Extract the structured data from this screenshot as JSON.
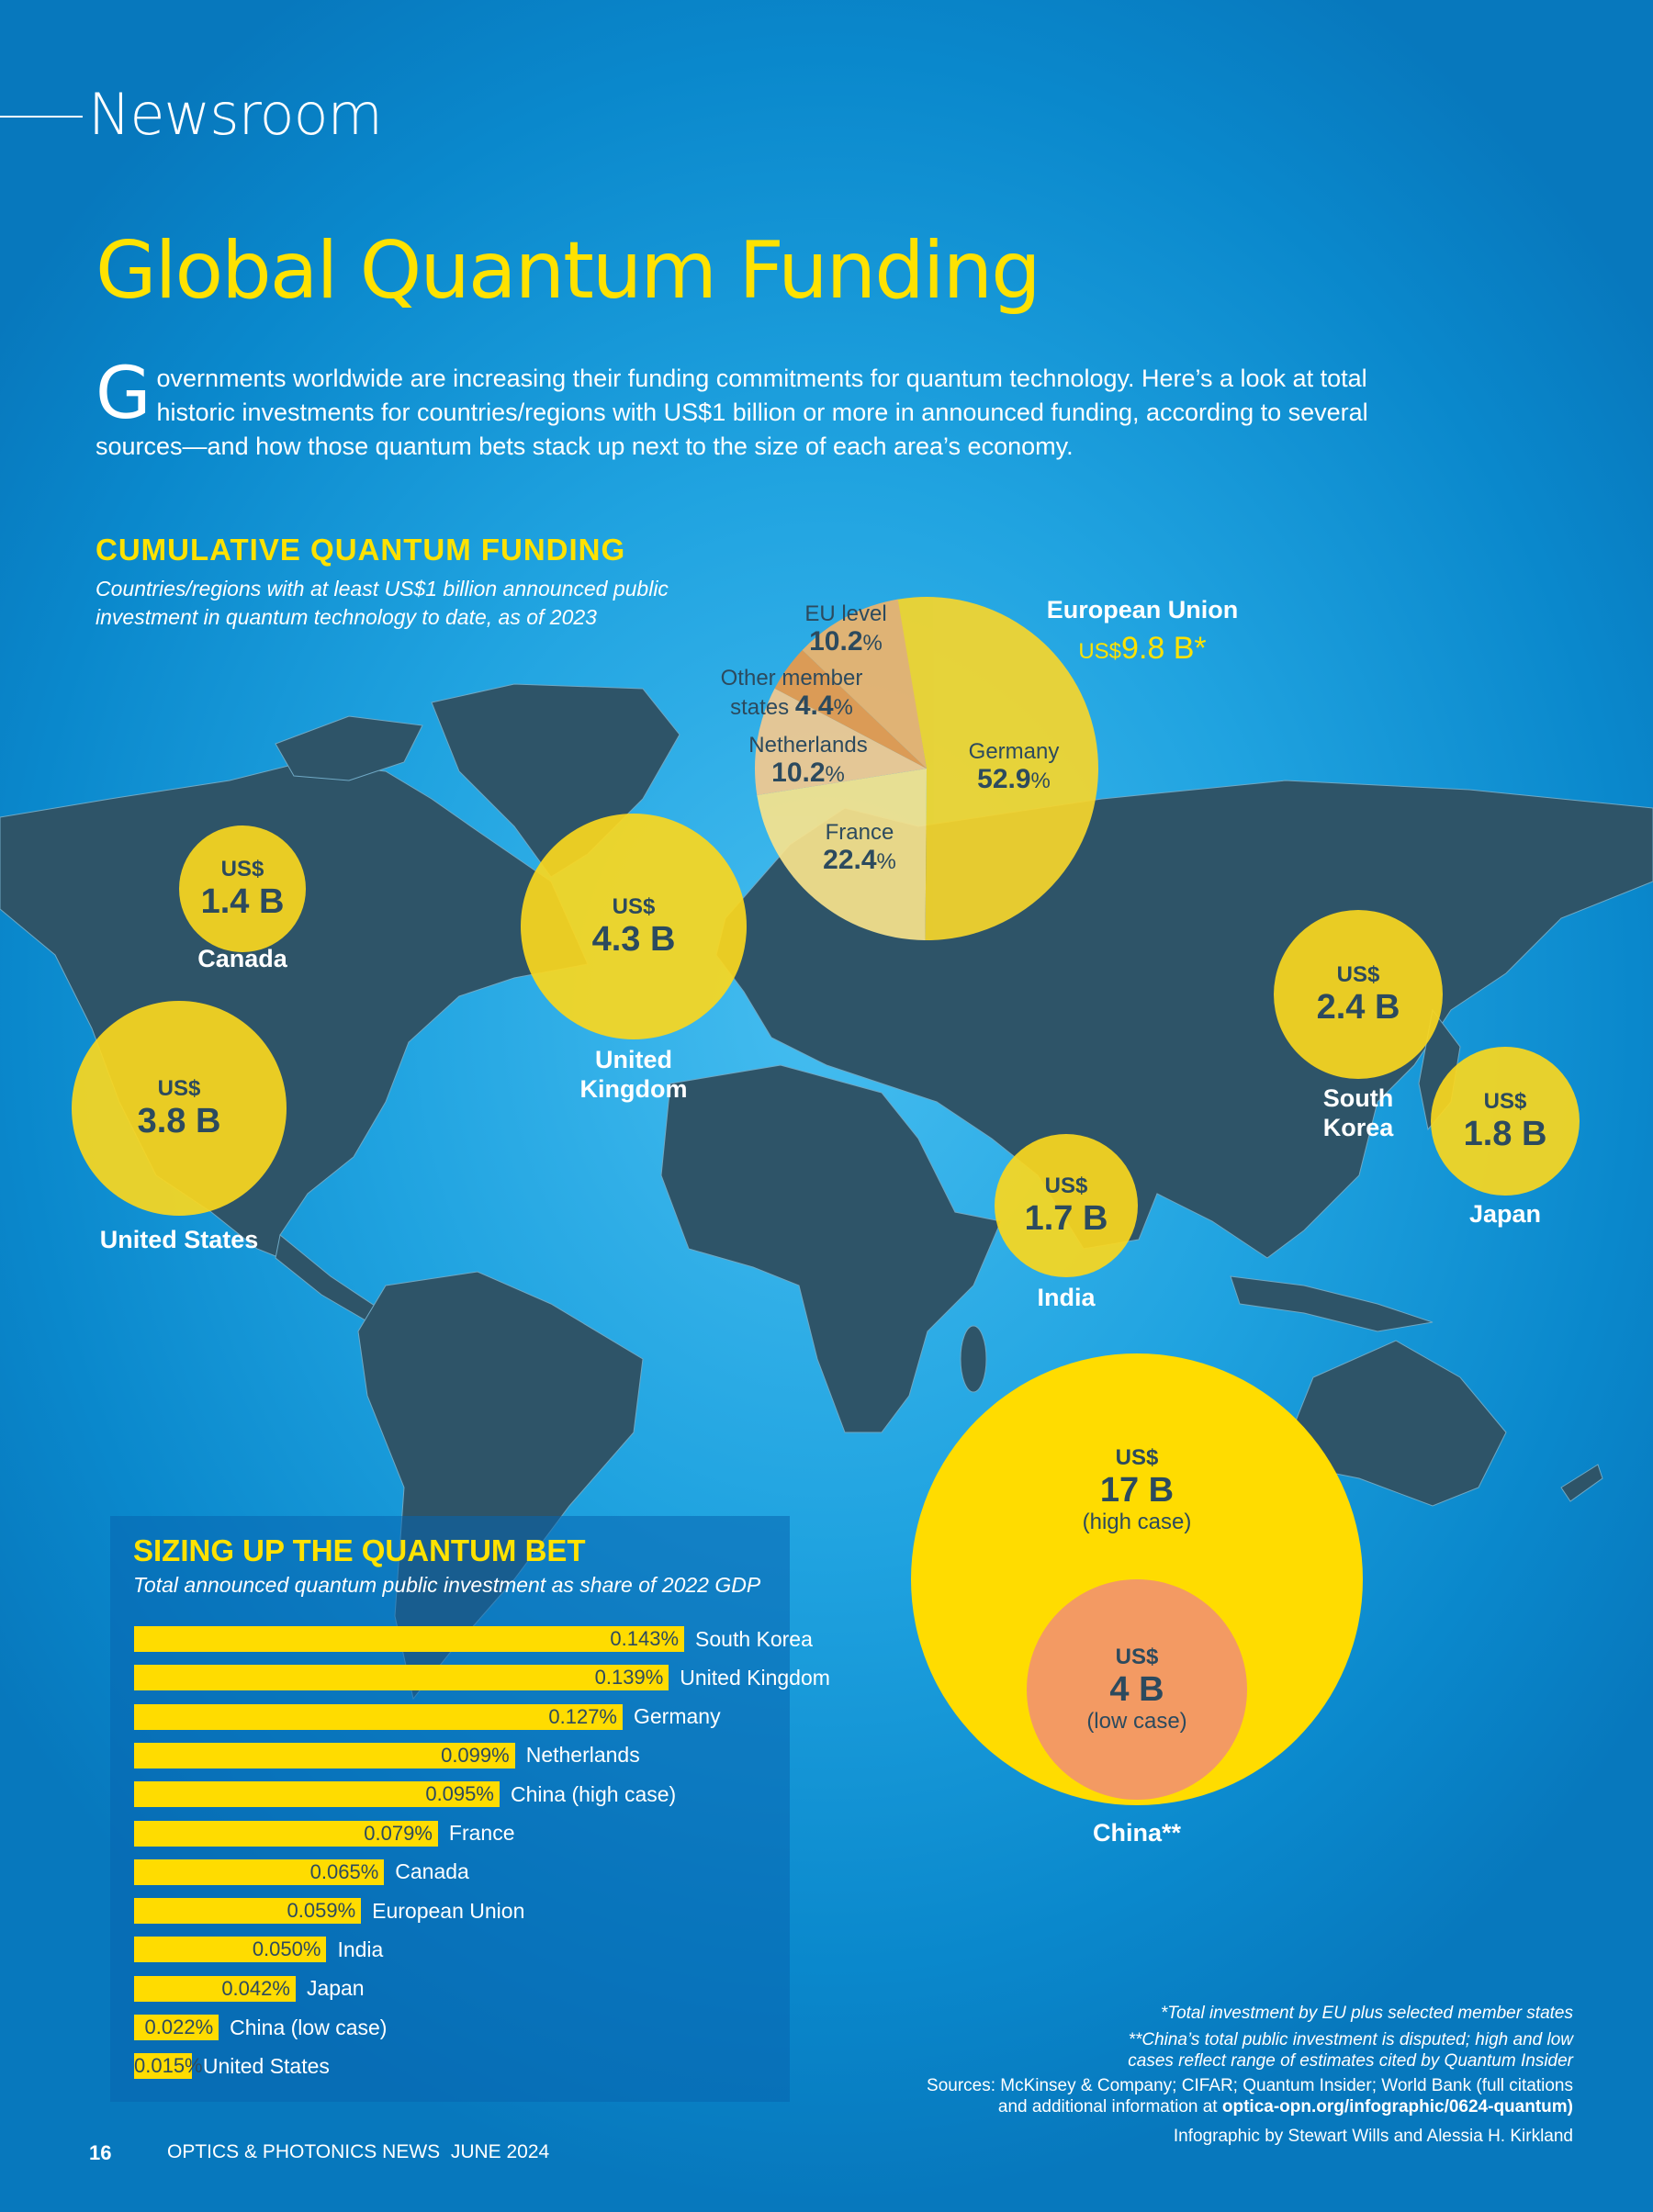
{
  "header": {
    "section": "Newsroom",
    "title": "Global Quantum Funding",
    "intro_cap": "G",
    "intro": "overnments worldwide are increasing their funding commitments for quantum technology. Here’s a look at total historic investments for countries/regions with US$1 billion or more in announced funding, according to several sources—and how those quantum bets stack up next to the size of each area’s economy."
  },
  "map": {
    "heading": "CUMULATIVE QUANTUM FUNDING",
    "subheading": "Countries/regions with at least US$1 billion announced public investment in quantum technology to date, as of 2023",
    "currency": "US$"
  },
  "chart_data": [
    {
      "type": "bubble",
      "title": "CUMULATIVE QUANTUM FUNDING",
      "unit": "US$ B",
      "points": [
        {
          "region": "Canada",
          "value": 1.4,
          "label": "1.4 B"
        },
        {
          "region": "United States",
          "value": 3.8,
          "label": "3.8 B"
        },
        {
          "region": "United Kingdom",
          "value": 4.3,
          "label": "4.3 B"
        },
        {
          "region": "European Union",
          "value": 9.8,
          "label": "US$9.8 B*"
        },
        {
          "region": "South Korea",
          "value": 2.4,
          "label": "2.4 B"
        },
        {
          "region": "Japan",
          "value": 1.8,
          "label": "1.8 B"
        },
        {
          "region": "India",
          "value": 1.7,
          "label": "1.7 B"
        },
        {
          "region": "China**",
          "value": 17,
          "label": "17 B",
          "note": "(high case)"
        },
        {
          "region": "China**",
          "value": 4,
          "label": "4 B",
          "note": "(low case)"
        }
      ]
    },
    {
      "type": "pie",
      "title": "European Union",
      "slices": [
        {
          "name": "Germany",
          "value": 52.9,
          "color": "#f6d62b"
        },
        {
          "name": "France",
          "value": 22.4,
          "color": "#f7e38c"
        },
        {
          "name": "Netherlands",
          "value": 10.2,
          "color": "#f3c990"
        },
        {
          "name": "Other member states",
          "value": 4.4,
          "color": "#ea9a4a"
        },
        {
          "name": "EU level",
          "value": 10.2,
          "color": "#efb46c"
        }
      ]
    },
    {
      "type": "bar",
      "orientation": "horizontal",
      "title": "SIZING UP THE QUANTUM BET",
      "subtitle": "Total announced quantum public investment as share of 2022 GDP",
      "categories": [
        "South Korea",
        "United Kingdom",
        "Germany",
        "Netherlands",
        "China (high case)",
        "France",
        "Canada",
        "European Union",
        "India",
        "Japan",
        "China (low case)",
        "United States"
      ],
      "values": [
        0.143,
        0.139,
        0.127,
        0.099,
        0.095,
        0.079,
        0.065,
        0.059,
        0.05,
        0.042,
        0.022,
        0.015
      ],
      "labels": [
        "0.143%",
        "0.139%",
        "0.127%",
        "0.099%",
        "0.095%",
        "0.079%",
        "0.065%",
        "0.059%",
        "0.050%",
        "0.042%",
        "0.022%",
        "0.015%"
      ],
      "unit": "%",
      "color": "#ffdc00"
    }
  ],
  "bubbles": {
    "canada": {
      "amt": "1.4 B",
      "name": "Canada"
    },
    "us": {
      "amt": "3.8 B",
      "name": "United States"
    },
    "uk": {
      "amt": "4.3 B",
      "name1": "United",
      "name2": "Kingdom"
    },
    "korea": {
      "amt": "2.4 B",
      "name1": "South",
      "name2": "Korea"
    },
    "japan": {
      "amt": "1.8 B",
      "name": "Japan"
    },
    "india": {
      "amt": "1.7 B",
      "name": "India"
    },
    "china_high": {
      "amt": "17 B",
      "note": "(high case)"
    },
    "china_low": {
      "amt": "4 B",
      "note": "(low case)"
    },
    "china_name": "China**",
    "eu": {
      "name": "European Union",
      "cur": "US$",
      "amt": "9.8 B*",
      "germany": "Germany",
      "germany_pct": "52.9",
      "france": "France",
      "france_pct": "22.4",
      "nl": "Netherlands",
      "nl_pct": "10.2",
      "other1": "Other member",
      "other2": "states",
      "other_pct": "4.4",
      "eulevel": "EU level",
      "eulevel_pct": "10.2",
      "pct": "%"
    }
  },
  "footnotes": {
    "f1": "*Total investment by EU plus selected member states",
    "f2a": "**China’s total public investment is disputed; high and low",
    "f2b": "cases reflect range of estimates cited by Quantum Insider",
    "src_a": "Sources: McKinsey & Company; CIFAR; Quantum Insider; World Bank (full citations",
    "src_b": "and additional information at ",
    "src_url": "optica-opn.org/infographic/0624-quantum)",
    "credit": "Infographic by Stewart Wills and Alessia H. Kirkland"
  },
  "footer": {
    "page": "16",
    "publication": "OPTICS & PHOTONICS NEWS  JUNE 2024"
  }
}
